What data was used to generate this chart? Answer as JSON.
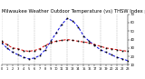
{
  "title": "Milwaukee Weather Outdoor Temperature (vs) THSW Index per Hour (Last 24 Hours)",
  "hours": [
    0,
    1,
    2,
    3,
    4,
    5,
    6,
    7,
    8,
    9,
    10,
    11,
    12,
    13,
    14,
    15,
    16,
    17,
    18,
    19,
    20,
    21,
    22,
    23
  ],
  "temp": [
    38,
    34,
    30,
    29,
    27,
    26,
    27,
    29,
    33,
    36,
    38,
    39,
    40,
    39,
    38,
    37,
    36,
    34,
    32,
    30,
    29,
    28,
    27,
    26
  ],
  "thsw": [
    36,
    30,
    25,
    22,
    19,
    17,
    18,
    21,
    28,
    38,
    48,
    58,
    65,
    62,
    55,
    44,
    38,
    33,
    28,
    25,
    22,
    19,
    17,
    15
  ],
  "temp_color": "#dd0000",
  "thsw_color": "#0000dd",
  "marker_color": "#000000",
  "bg_color": "#ffffff",
  "plot_bg": "#ffffff",
  "ylim": [
    10,
    70
  ],
  "ytick_values": [
    10,
    20,
    30,
    40,
    50,
    60,
    70
  ],
  "ytick_labels": [
    "10",
    "20",
    "30",
    "40",
    "50",
    "60",
    "70"
  ],
  "grid_hours": [
    0,
    3,
    6,
    9,
    12,
    15,
    18,
    21,
    23
  ],
  "grid_color": "#aaaaaa",
  "title_fontsize": 3.8,
  "tick_labelsize": 2.8,
  "line_width": 0.7,
  "dash_on": 3,
  "dash_off": 2
}
